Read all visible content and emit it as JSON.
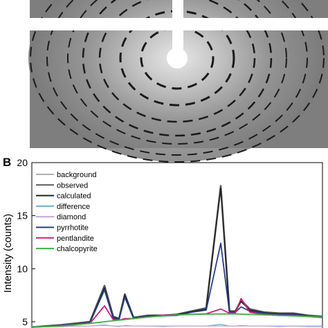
{
  "panel_b": {
    "label": "B"
  },
  "chart_data": {
    "type": "line",
    "ylabel": "Intensity (counts)",
    "ylim": [
      4.5,
      20
    ],
    "yticks": [
      5,
      10,
      15,
      20
    ],
    "xlim": [
      0,
      100
    ],
    "legend_position": "top-left",
    "x": [
      0,
      10,
      20,
      25,
      28,
      30,
      32,
      35,
      40,
      45,
      50,
      55,
      60,
      65,
      68,
      70,
      72,
      75,
      80,
      85,
      90,
      95,
      100
    ],
    "series": [
      {
        "name": "background",
        "color": "#b0b0b0",
        "values": [
          4.5,
          4.6,
          4.85,
          5.0,
          5.1,
          5.15,
          5.2,
          5.3,
          5.45,
          5.55,
          5.65,
          5.7,
          5.72,
          5.74,
          5.74,
          5.74,
          5.72,
          5.7,
          5.65,
          5.6,
          5.55,
          5.5,
          5.45
        ]
      },
      {
        "name": "observed",
        "color": "#5a5a5a",
        "values": [
          4.5,
          4.7,
          5.0,
          8.4,
          5.5,
          5.3,
          7.6,
          5.4,
          5.6,
          5.6,
          5.7,
          6.0,
          6.3,
          17.8,
          6.0,
          6.0,
          7.0,
          6.2,
          5.9,
          5.8,
          5.8,
          5.6,
          5.5
        ]
      },
      {
        "name": "calculated",
        "color": "#222222",
        "values": [
          4.5,
          4.65,
          4.95,
          8.2,
          5.4,
          5.25,
          7.5,
          5.35,
          5.55,
          5.6,
          5.68,
          5.95,
          6.2,
          17.6,
          5.95,
          5.95,
          6.9,
          6.1,
          5.85,
          5.75,
          5.75,
          5.55,
          5.45
        ]
      },
      {
        "name": "difference",
        "color": "#6aaed6",
        "values": [
          4.55,
          4.6,
          4.6,
          4.7,
          4.6,
          4.55,
          4.65,
          4.6,
          4.6,
          4.55,
          4.6,
          4.6,
          4.6,
          4.75,
          4.6,
          4.6,
          4.65,
          4.6,
          4.6,
          4.55,
          4.6,
          4.55,
          4.55
        ]
      },
      {
        "name": "diamond",
        "color": "#c9a0d8",
        "values": [
          4.5,
          4.55,
          4.6,
          4.65,
          4.6,
          4.6,
          4.6,
          4.6,
          4.6,
          4.6,
          4.6,
          4.6,
          4.6,
          4.6,
          4.6,
          4.6,
          4.6,
          4.6,
          4.6,
          4.6,
          4.6,
          4.6,
          4.6
        ]
      },
      {
        "name": "pyrrhotite",
        "color": "#1f3f8f",
        "values": [
          4.5,
          4.65,
          4.9,
          8.0,
          5.3,
          5.2,
          7.3,
          5.3,
          5.5,
          5.55,
          5.6,
          5.9,
          6.1,
          12.4,
          5.9,
          5.9,
          6.4,
          6.0,
          5.8,
          5.7,
          5.7,
          5.5,
          5.4
        ]
      },
      {
        "name": "pentlandite",
        "color": "#d81b7a",
        "values": [
          4.5,
          4.6,
          4.85,
          6.5,
          5.2,
          5.15,
          5.3,
          5.3,
          5.45,
          5.6,
          5.65,
          5.7,
          5.75,
          6.2,
          5.8,
          5.8,
          7.2,
          5.9,
          5.7,
          5.6,
          5.6,
          5.5,
          5.45
        ]
      },
      {
        "name": "chalcopyrite",
        "color": "#3cb043",
        "values": [
          4.5,
          4.6,
          4.85,
          5.0,
          5.1,
          5.15,
          5.2,
          5.3,
          5.45,
          5.55,
          5.65,
          5.7,
          5.72,
          5.74,
          5.74,
          5.74,
          5.72,
          5.7,
          5.65,
          5.6,
          5.55,
          5.5,
          5.45
        ]
      }
    ]
  }
}
